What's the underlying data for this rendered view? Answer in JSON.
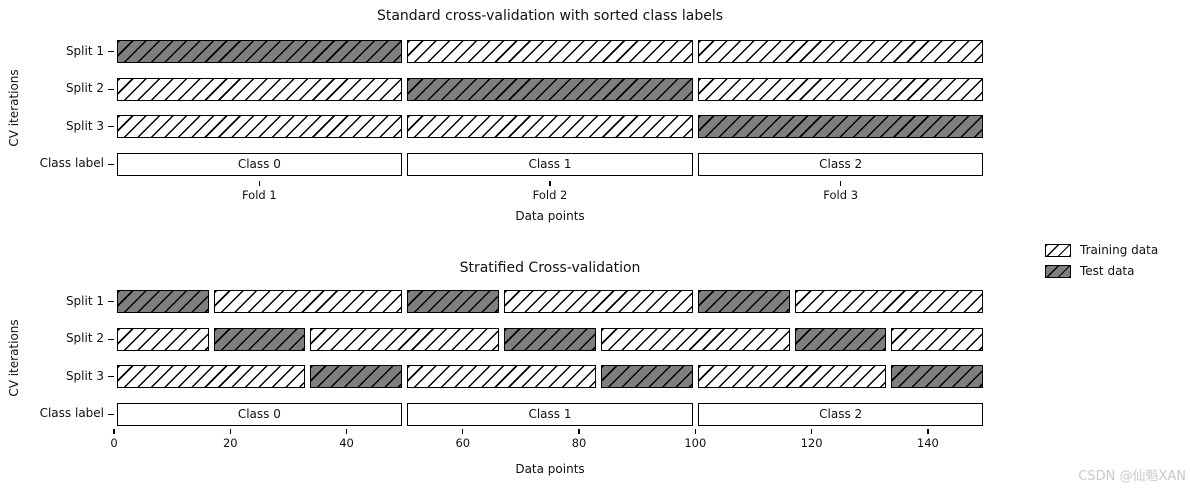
{
  "watermark": {
    "text": "CSDN @仙魁XAN"
  },
  "legend": {
    "entries": [
      {
        "label": "Training data",
        "kind": "train"
      },
      {
        "label": "Test data",
        "kind": "test"
      }
    ]
  },
  "colors": {
    "train_fill": "#ffffff",
    "test_fill": "#7f7f7f",
    "hatch": "#000000",
    "edge": "#000000",
    "watermark": "#c9c9c9"
  },
  "chart_data": [
    {
      "type": "bar",
      "subtype": "horizontal-cv-indicator",
      "title": "Standard cross-validation with sorted class labels",
      "xlabel": "Data points",
      "ylabel": "CV iterations",
      "xlim": [
        0,
        150
      ],
      "grid": false,
      "x_ticks": [
        {
          "pos": 25,
          "label": "Fold 1"
        },
        {
          "pos": 75,
          "label": "Fold 2"
        },
        {
          "pos": 125,
          "label": "Fold 3"
        }
      ],
      "rows": [
        {
          "label": "Split 1",
          "segments": [
            {
              "start": 0,
              "end": 50,
              "kind": "test"
            },
            {
              "start": 50,
              "end": 100,
              "kind": "train"
            },
            {
              "start": 100,
              "end": 150,
              "kind": "train"
            }
          ]
        },
        {
          "label": "Split 2",
          "segments": [
            {
              "start": 0,
              "end": 50,
              "kind": "train"
            },
            {
              "start": 50,
              "end": 100,
              "kind": "test"
            },
            {
              "start": 100,
              "end": 150,
              "kind": "train"
            }
          ]
        },
        {
          "label": "Split 3",
          "segments": [
            {
              "start": 0,
              "end": 50,
              "kind": "train"
            },
            {
              "start": 50,
              "end": 100,
              "kind": "train"
            },
            {
              "start": 100,
              "end": 150,
              "kind": "test"
            }
          ]
        },
        {
          "label": "Class label",
          "segments": [
            {
              "start": 0,
              "end": 50,
              "kind": "class",
              "text": "Class 0"
            },
            {
              "start": 50,
              "end": 100,
              "kind": "class",
              "text": "Class 1"
            },
            {
              "start": 100,
              "end": 150,
              "kind": "class",
              "text": "Class 2"
            }
          ]
        }
      ]
    },
    {
      "type": "bar",
      "subtype": "horizontal-cv-indicator",
      "title": "Stratified Cross-validation",
      "xlabel": "Data points",
      "ylabel": "CV iterations",
      "xlim": [
        0,
        150
      ],
      "grid": false,
      "x_ticks": [
        {
          "pos": 0,
          "label": "0"
        },
        {
          "pos": 20,
          "label": "20"
        },
        {
          "pos": 40,
          "label": "40"
        },
        {
          "pos": 60,
          "label": "60"
        },
        {
          "pos": 80,
          "label": "80"
        },
        {
          "pos": 100,
          "label": "100"
        },
        {
          "pos": 120,
          "label": "120"
        },
        {
          "pos": 140,
          "label": "140"
        }
      ],
      "rows": [
        {
          "label": "Split 1",
          "segments": [
            {
              "start": 0,
              "end": 16.7,
              "kind": "test"
            },
            {
              "start": 16.7,
              "end": 50,
              "kind": "train"
            },
            {
              "start": 50,
              "end": 66.7,
              "kind": "test"
            },
            {
              "start": 66.7,
              "end": 100,
              "kind": "train"
            },
            {
              "start": 100,
              "end": 116.7,
              "kind": "test"
            },
            {
              "start": 116.7,
              "end": 150,
              "kind": "train"
            }
          ]
        },
        {
          "label": "Split 2",
          "segments": [
            {
              "start": 0,
              "end": 16.7,
              "kind": "train"
            },
            {
              "start": 16.7,
              "end": 33.3,
              "kind": "test"
            },
            {
              "start": 33.3,
              "end": 66.7,
              "kind": "train"
            },
            {
              "start": 66.7,
              "end": 83.3,
              "kind": "test"
            },
            {
              "start": 83.3,
              "end": 116.7,
              "kind": "train"
            },
            {
              "start": 116.7,
              "end": 133.3,
              "kind": "test"
            },
            {
              "start": 133.3,
              "end": 150,
              "kind": "train"
            }
          ]
        },
        {
          "label": "Split 3",
          "segments": [
            {
              "start": 0,
              "end": 33.3,
              "kind": "train"
            },
            {
              "start": 33.3,
              "end": 50,
              "kind": "test"
            },
            {
              "start": 50,
              "end": 83.3,
              "kind": "train"
            },
            {
              "start": 83.3,
              "end": 100,
              "kind": "test"
            },
            {
              "start": 100,
              "end": 133.3,
              "kind": "train"
            },
            {
              "start": 133.3,
              "end": 150,
              "kind": "test"
            }
          ]
        },
        {
          "label": "Class label",
          "segments": [
            {
              "start": 0,
              "end": 50,
              "kind": "class",
              "text": "Class 0"
            },
            {
              "start": 50,
              "end": 100,
              "kind": "class",
              "text": "Class 1"
            },
            {
              "start": 100,
              "end": 150,
              "kind": "class",
              "text": "Class 2"
            }
          ]
        }
      ]
    }
  ]
}
